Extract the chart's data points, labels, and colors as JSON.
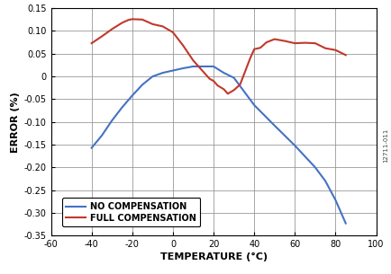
{
  "xlabel": "TEMPERATURE (°C)",
  "ylabel": "ERROR (%)",
  "xlim": [
    -60,
    100
  ],
  "ylim": [
    -0.35,
    0.15
  ],
  "xticks": [
    -60,
    -40,
    -20,
    0,
    20,
    40,
    60,
    80,
    100
  ],
  "yticks": [
    -0.35,
    -0.3,
    -0.25,
    -0.2,
    -0.15,
    -0.1,
    -0.05,
    0.0,
    0.05,
    0.1,
    0.15
  ],
  "ytick_labels": [
    "-0.35",
    "-0.30",
    "-0.25",
    "-0.20",
    "-0.15",
    "-0.10",
    "-0.05",
    "0",
    "0.05",
    "0.10",
    "0.15"
  ],
  "no_comp_x": [
    -40,
    -35,
    -30,
    -25,
    -20,
    -15,
    -10,
    -5,
    0,
    5,
    10,
    20,
    25,
    30,
    40,
    50,
    60,
    70,
    75,
    80,
    85
  ],
  "no_comp_y": [
    -0.157,
    -0.13,
    -0.097,
    -0.068,
    -0.042,
    -0.018,
    0.0,
    0.008,
    0.013,
    0.018,
    0.022,
    0.022,
    0.008,
    -0.003,
    -0.063,
    -0.108,
    -0.152,
    -0.2,
    -0.23,
    -0.272,
    -0.323
  ],
  "full_comp_x": [
    -40,
    -35,
    -30,
    -25,
    -22,
    -20,
    -15,
    -10,
    -5,
    0,
    5,
    10,
    15,
    18,
    20,
    22,
    25,
    27,
    30,
    33,
    35,
    38,
    40,
    43,
    46,
    50,
    55,
    60,
    65,
    70,
    75,
    80,
    85
  ],
  "full_comp_y": [
    0.073,
    0.088,
    0.104,
    0.118,
    0.124,
    0.126,
    0.125,
    0.115,
    0.11,
    0.097,
    0.068,
    0.035,
    0.01,
    -0.005,
    -0.01,
    -0.02,
    -0.028,
    -0.038,
    -0.03,
    -0.018,
    0.005,
    0.04,
    0.06,
    0.063,
    0.075,
    0.082,
    0.078,
    0.073,
    0.074,
    0.073,
    0.062,
    0.058,
    0.047
  ],
  "no_comp_color": "#4472C4",
  "full_comp_color": "#C0392B",
  "line_width": 1.5,
  "bg_color": "#FFFFFF",
  "grid_color": "#999999",
  "watermark": "12711-011"
}
